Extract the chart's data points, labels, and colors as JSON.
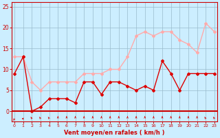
{
  "hours": [
    0,
    1,
    2,
    3,
    4,
    5,
    6,
    7,
    8,
    9,
    10,
    11,
    12,
    13,
    14,
    15,
    16,
    17,
    18,
    19,
    20,
    21,
    22,
    23
  ],
  "mean_wind": [
    9,
    13,
    0,
    1,
    3,
    3,
    3,
    2,
    7,
    7,
    4,
    7,
    7,
    6,
    5,
    6,
    5,
    12,
    9,
    5,
    9,
    9,
    9,
    9
  ],
  "gust_wind": [
    13,
    13,
    7,
    5,
    7,
    7,
    7,
    7,
    9,
    9,
    9,
    10,
    10,
    13,
    18,
    19,
    18,
    19,
    19,
    17,
    16,
    14,
    21,
    19
  ],
  "mean_color": "#dd0000",
  "gust_color": "#ffaaaa",
  "bg_color": "#cceeff",
  "grid_color": "#99bbcc",
  "axis_color": "#cc0000",
  "xlabel": "Vent moyen/en rafales ( km/h )",
  "yticks": [
    0,
    5,
    10,
    15,
    20,
    25
  ],
  "ylim": [
    -2.5,
    26
  ],
  "xlim": [
    -0.3,
    23.3
  ]
}
